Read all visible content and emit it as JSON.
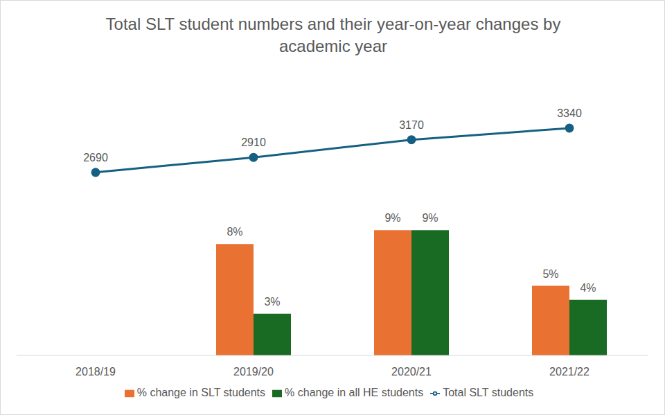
{
  "chart_data": {
    "type": "bar",
    "title": "Total SLT student numbers and their year-on-year changes by academic year",
    "categories": [
      "2018/19",
      "2019/20",
      "2020/21",
      "2021/22"
    ],
    "series": [
      {
        "name": "% change in SLT students",
        "type": "bar",
        "color": "#E97132",
        "values": [
          null,
          8,
          9,
          5
        ],
        "value_labels": [
          null,
          "8%",
          "9%",
          "5%"
        ]
      },
      {
        "name": "% change in all HE students",
        "type": "bar",
        "color": "#196B24",
        "values": [
          null,
          3,
          9,
          4
        ],
        "value_labels": [
          null,
          "3%",
          "9%",
          "4%"
        ]
      },
      {
        "name": "Total SLT students",
        "type": "line",
        "color": "#156082",
        "marker": "circle",
        "axis": "y2",
        "values": [
          2690,
          2910,
          3170,
          3340
        ]
      }
    ],
    "ylim": [
      0,
      22
    ],
    "y2lim": [
      0,
      4500
    ],
    "data_labels": true,
    "tick_labels": "x",
    "grid": false,
    "legend": "bottom"
  }
}
